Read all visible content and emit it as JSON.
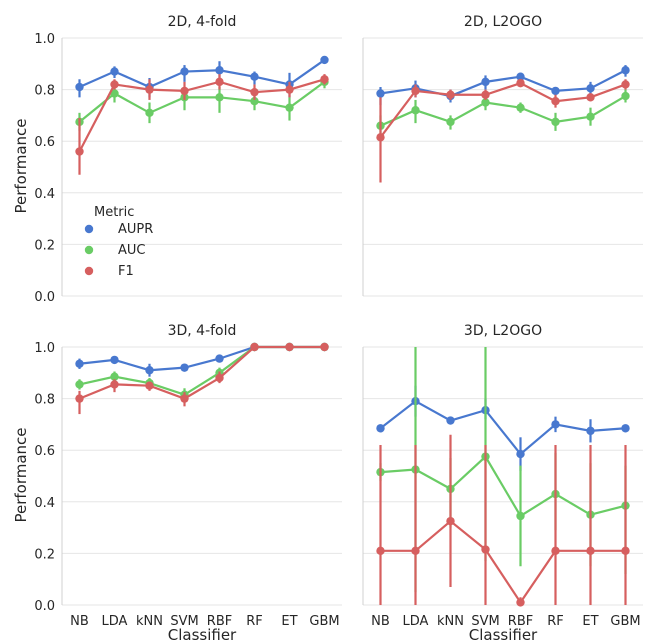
{
  "chart_data": {
    "type": "line",
    "xlabel": "Classifier",
    "ylabel": "Performance",
    "ylim": [
      0,
      1
    ],
    "yticks": [
      "0.0",
      "0.2",
      "0.4",
      "0.6",
      "0.8",
      "1.0"
    ],
    "categories": [
      "NB",
      "LDA",
      "kNN",
      "SVM",
      "RBF",
      "RF",
      "ET",
      "GBM"
    ],
    "legend": {
      "title": "Metric",
      "placement": "left-middle of top-left panel"
    },
    "colors": {
      "AUPR": "#4878cf",
      "AUC": "#6acc65",
      "F1": "#d65f5f"
    },
    "panels": [
      {
        "title": "2D, 4-fold",
        "series": [
          {
            "name": "AUPR",
            "values": [
              0.81,
              0.87,
              0.81,
              0.87,
              0.875,
              0.85,
              0.82,
              0.915
            ],
            "err": [
              [
                0.77,
                0.84
              ],
              [
                0.845,
                0.89
              ],
              [
                0.77,
                0.845
              ],
              [
                0.83,
                0.895
              ],
              [
                0.84,
                0.91
              ],
              [
                0.82,
                0.87
              ],
              [
                0.77,
                0.865
              ],
              [
                0.9,
                0.93
              ]
            ]
          },
          {
            "name": "AUC",
            "values": [
              0.675,
              0.785,
              0.71,
              0.77,
              0.77,
              0.755,
              0.73,
              0.83
            ],
            "err": [
              [
                0.64,
                0.71
              ],
              [
                0.75,
                0.81
              ],
              [
                0.67,
                0.75
              ],
              [
                0.72,
                0.8
              ],
              [
                0.71,
                0.81
              ],
              [
                0.72,
                0.78
              ],
              [
                0.68,
                0.77
              ],
              [
                0.805,
                0.85
              ]
            ]
          },
          {
            "name": "F1",
            "values": [
              0.56,
              0.82,
              0.8,
              0.795,
              0.83,
              0.79,
              0.8,
              0.84
            ],
            "err": [
              [
                0.47,
                0.69
              ],
              [
                0.8,
                0.84
              ],
              [
                0.76,
                0.84
              ],
              [
                0.76,
                0.83
              ],
              [
                0.8,
                0.86
              ],
              [
                0.76,
                0.82
              ],
              [
                0.77,
                0.83
              ],
              [
                0.82,
                0.86
              ]
            ]
          }
        ]
      },
      {
        "title": "2D, L2OGO",
        "series": [
          {
            "name": "AUPR",
            "values": [
              0.785,
              0.805,
              0.775,
              0.83,
              0.85,
              0.795,
              0.805,
              0.875
            ],
            "err": [
              [
                0.74,
                0.81
              ],
              [
                0.77,
                0.835
              ],
              [
                0.75,
                0.8
              ],
              [
                0.8,
                0.855
              ],
              [
                0.83,
                0.865
              ],
              [
                0.78,
                0.81
              ],
              [
                0.78,
                0.83
              ],
              [
                0.85,
                0.895
              ]
            ]
          },
          {
            "name": "AUC",
            "values": [
              0.66,
              0.72,
              0.675,
              0.75,
              0.73,
              0.675,
              0.695,
              0.775
            ],
            "err": [
              [
                0.62,
                0.7
              ],
              [
                0.67,
                0.76
              ],
              [
                0.645,
                0.7
              ],
              [
                0.72,
                0.78
              ],
              [
                0.71,
                0.75
              ],
              [
                0.64,
                0.71
              ],
              [
                0.66,
                0.73
              ],
              [
                0.75,
                0.8
              ]
            ]
          },
          {
            "name": "F1",
            "values": [
              0.615,
              0.795,
              0.78,
              0.78,
              0.825,
              0.755,
              0.77,
              0.82
            ],
            "err": [
              [
                0.44,
                0.77
              ],
              [
                0.77,
                0.82
              ],
              [
                0.76,
                0.8
              ],
              [
                0.76,
                0.8
              ],
              [
                0.81,
                0.84
              ],
              [
                0.73,
                0.78
              ],
              [
                0.755,
                0.785
              ],
              [
                0.8,
                0.84
              ]
            ]
          }
        ]
      },
      {
        "title": "3D, 4-fold",
        "series": [
          {
            "name": "AUPR",
            "values": [
              0.935,
              0.95,
              0.91,
              0.92,
              0.955,
              1.0,
              1.0,
              1.0
            ],
            "err": [
              [
                0.915,
                0.955
              ],
              [
                0.935,
                0.96
              ],
              [
                0.885,
                0.935
              ],
              [
                0.91,
                0.93
              ],
              [
                0.945,
                0.965
              ],
              [
                0.99,
                1.0
              ],
              [
                0.99,
                1.0
              ],
              [
                0.99,
                1.0
              ]
            ]
          },
          {
            "name": "AUC",
            "values": [
              0.855,
              0.885,
              0.86,
              0.815,
              0.9,
              1.0,
              1.0,
              1.0
            ],
            "err": [
              [
                0.835,
                0.875
              ],
              [
                0.86,
                0.905
              ],
              [
                0.84,
                0.88
              ],
              [
                0.785,
                0.84
              ],
              [
                0.88,
                0.92
              ],
              [
                0.99,
                1.0
              ],
              [
                0.99,
                1.0
              ],
              [
                0.99,
                1.0
              ]
            ]
          },
          {
            "name": "F1",
            "values": [
              0.8,
              0.855,
              0.85,
              0.8,
              0.88,
              1.0,
              1.0,
              1.0
            ],
            "err": [
              [
                0.74,
                0.83
              ],
              [
                0.825,
                0.875
              ],
              [
                0.83,
                0.865
              ],
              [
                0.77,
                0.825
              ],
              [
                0.86,
                0.905
              ],
              [
                0.99,
                1.0
              ],
              [
                0.99,
                1.0
              ],
              [
                0.99,
                1.0
              ]
            ]
          }
        ]
      },
      {
        "title": "3D, L2OGO",
        "series": [
          {
            "name": "AUPR",
            "values": [
              0.685,
              0.79,
              0.715,
              0.755,
              0.585,
              0.7,
              0.675,
              0.685
            ],
            "err": [
              [
                0.67,
                0.7
              ],
              [
                0.73,
                0.85
              ],
              [
                0.7,
                0.73
              ],
              [
                0.72,
                0.8
              ],
              [
                0.52,
                0.65
              ],
              [
                0.67,
                0.73
              ],
              [
                0.63,
                0.72
              ],
              [
                0.67,
                0.7
              ]
            ]
          },
          {
            "name": "AUC",
            "values": [
              0.515,
              0.525,
              0.45,
              0.575,
              0.345,
              0.43,
              0.35,
              0.385
            ],
            "err": [
              [
                0.48,
                0.55
              ],
              [
                0.05,
                1.0
              ],
              [
                0.3,
                0.57
              ],
              [
                0.17,
                1.0
              ],
              [
                0.15,
                0.54
              ],
              [
                0.29,
                0.59
              ],
              [
                0.15,
                0.55
              ],
              [
                0.12,
                0.54
              ]
            ]
          },
          {
            "name": "F1",
            "values": [
              0.21,
              0.21,
              0.325,
              0.215,
              0.01,
              0.21,
              0.21,
              0.21
            ],
            "err": [
              [
                0.0,
                0.62
              ],
              [
                0.0,
                0.62
              ],
              [
                0.07,
                0.66
              ],
              [
                0.0,
                0.62
              ],
              [
                0.0,
                0.03
              ],
              [
                0.0,
                0.62
              ],
              [
                0.0,
                0.62
              ],
              [
                0.0,
                0.62
              ]
            ]
          }
        ]
      }
    ]
  }
}
